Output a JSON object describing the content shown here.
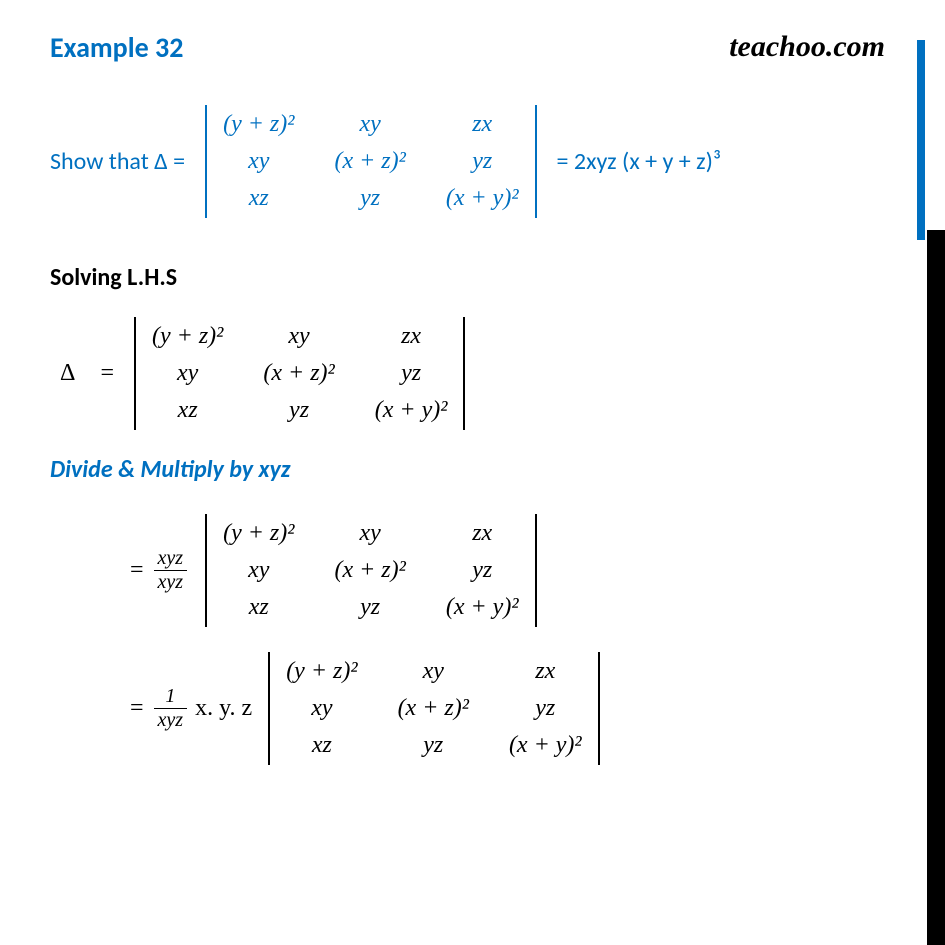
{
  "title": "Example 32",
  "brand": "teachoo.com",
  "show_that": "Show that Δ =",
  "rhs_result": "= 2xyz (x + y + z)³",
  "solving_heading": "Solving L.H.S",
  "delta_symbol": "Δ",
  "equals": "=",
  "divide_multiply_text": "Divide & Multiply by xyz",
  "frac1_num": "xyz",
  "frac1_den": "xyz",
  "frac2_num": "1",
  "frac2_den": "xyz",
  "xyz_product": "x. y. z",
  "matrix": {
    "r1c1": "(y + z)²",
    "r1c2": "xy",
    "r1c3": "zx",
    "r2c1": "xy",
    "r2c2": "(x + z)²",
    "r2c3": "yz",
    "r3c1": "xz",
    "r3c2": "yz",
    "r3c3": "(x + y)²"
  },
  "colors": {
    "primary": "#0070c0",
    "text": "#000000",
    "bg": "#ffffff"
  },
  "typography": {
    "title_size": 28,
    "body_size": 24,
    "brand_size": 30
  }
}
